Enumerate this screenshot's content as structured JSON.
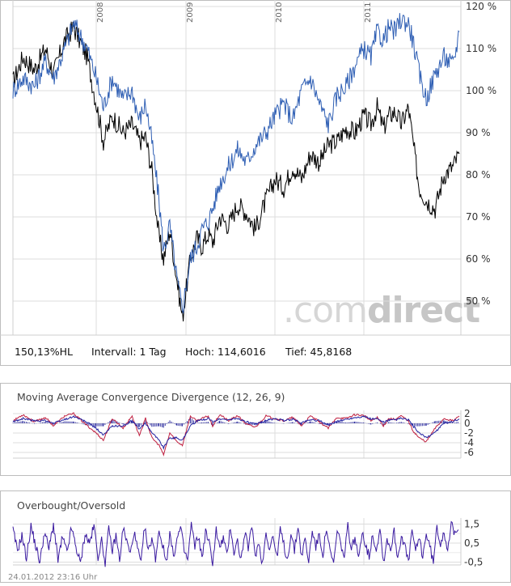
{
  "chart_data": [
    {
      "type": "line",
      "x_ticks": [
        "2008",
        "2009",
        "2010",
        "2011"
      ],
      "y_ticks": [
        "120 %",
        "110 %",
        "100 %",
        "90 %",
        "80 %",
        "70 %",
        "60 %",
        "50 %"
      ],
      "ylim": [
        42,
        122
      ],
      "grid": true,
      "series": [
        {
          "color": "#000000",
          "x": [
            2007.26,
            2007.35,
            2007.45,
            2007.55,
            2007.62,
            2007.72,
            2007.8,
            2007.92,
            2008.0,
            2008.08,
            2008.18,
            2008.3,
            2008.4,
            2008.48,
            2008.55,
            2008.62,
            2008.7,
            2008.75,
            2008.82,
            2008.9,
            2008.96,
            2009.05,
            2009.12,
            2009.18,
            2009.25,
            2009.3,
            2009.38,
            2009.48,
            2009.58,
            2009.68,
            2009.78,
            2009.9,
            2010.0,
            2010.1,
            2010.2,
            2010.3,
            2010.4,
            2010.5,
            2010.6,
            2010.7,
            2010.8,
            2010.9,
            2011.0,
            2011.08,
            2011.15,
            2011.22,
            2011.28,
            2011.35,
            2011.42,
            2011.5,
            2011.55,
            2011.62,
            2011.7,
            2011.8,
            2011.9,
            2012.0,
            2012.07
          ],
          "y": [
            102,
            108,
            105,
            110,
            104,
            112,
            115,
            108,
            97,
            88,
            94,
            90,
            92,
            88,
            89,
            81,
            65,
            60,
            67,
            55,
            46,
            60,
            65,
            63,
            66,
            64,
            70,
            68,
            73,
            71,
            67,
            74,
            79,
            77,
            82,
            79,
            85,
            83,
            87,
            88,
            91,
            90,
            94,
            92,
            96,
            91,
            94,
            95,
            92,
            96,
            88,
            77,
            74,
            72,
            80,
            82,
            85
          ]
        },
        {
          "color": "#2f5fb4",
          "x": [
            2007.26,
            2007.35,
            2007.45,
            2007.55,
            2007.62,
            2007.72,
            2007.8,
            2007.92,
            2008.0,
            2008.08,
            2008.18,
            2008.3,
            2008.4,
            2008.48,
            2008.55,
            2008.62,
            2008.7,
            2008.75,
            2008.82,
            2008.9,
            2008.96,
            2009.05,
            2009.12,
            2009.18,
            2009.25,
            2009.3,
            2009.38,
            2009.48,
            2009.58,
            2009.68,
            2009.78,
            2009.9,
            2010.0,
            2010.1,
            2010.2,
            2010.3,
            2010.4,
            2010.5,
            2010.6,
            2010.7,
            2010.8,
            2010.9,
            2011.0,
            2011.08,
            2011.15,
            2011.22,
            2011.28,
            2011.35,
            2011.42,
            2011.5,
            2011.55,
            2011.62,
            2011.7,
            2011.8,
            2011.9,
            2012.0,
            2012.07
          ],
          "y": [
            100,
            103,
            101,
            107,
            103,
            110,
            116,
            110,
            103,
            96,
            103,
            98,
            100,
            93,
            97,
            88,
            74,
            62,
            68,
            55,
            48,
            60,
            63,
            67,
            69,
            72,
            78,
            82,
            86,
            83,
            87,
            90,
            94,
            97,
            93,
            100,
            103,
            97,
            92,
            99,
            101,
            106,
            110,
            108,
            114,
            112,
            115,
            114,
            117,
            116,
            112,
            104,
            98,
            104,
            108,
            106,
            114
          ]
        }
      ]
    },
    {
      "type": "line",
      "title": "Moving Average Convergence Divergence (12, 26, 9)",
      "y_ticks": [
        "2",
        "0",
        "-2",
        "-4",
        "-6"
      ],
      "ylim": [
        -7,
        3
      ],
      "grid": true,
      "x": [
        2007.26,
        2007.35,
        2007.45,
        2007.55,
        2007.62,
        2007.72,
        2007.8,
        2007.92,
        2008.0,
        2008.08,
        2008.18,
        2008.3,
        2008.4,
        2008.48,
        2008.55,
        2008.62,
        2008.7,
        2008.75,
        2008.82,
        2008.9,
        2008.96,
        2009.05,
        2009.12,
        2009.18,
        2009.25,
        2009.3,
        2009.38,
        2009.48,
        2009.58,
        2009.68,
        2009.78,
        2009.9,
        2010.0,
        2010.1,
        2010.2,
        2010.3,
        2010.4,
        2010.5,
        2010.6,
        2010.7,
        2010.8,
        2010.9,
        2011.0,
        2011.08,
        2011.15,
        2011.22,
        2011.28,
        2011.35,
        2011.42,
        2011.5,
        2011.55,
        2011.62,
        2011.7,
        2011.8,
        2011.9,
        2012.0,
        2012.07
      ],
      "series": [
        {
          "color": "#c02040",
          "y": [
            0.5,
            1.8,
            0.3,
            1.2,
            -0.5,
            1.5,
            2.0,
            -0.5,
            -2.0,
            -3.5,
            1.0,
            -1.0,
            1.5,
            -2.5,
            1.0,
            -3.0,
            -4.5,
            -6.5,
            -2.0,
            -3.8,
            -4.5,
            1.5,
            0.5,
            1.0,
            1.5,
            -0.5,
            1.8,
            0.5,
            1.6,
            -0.2,
            -0.8,
            1.5,
            1.0,
            0.5,
            1.2,
            -0.5,
            1.5,
            0.3,
            -1.0,
            1.2,
            1.0,
            1.8,
            1.6,
            0.5,
            1.2,
            -0.5,
            1.0,
            0.8,
            1.5,
            0.5,
            -1.5,
            -3.0,
            -3.8,
            -1.0,
            1.0,
            0.5,
            1.5
          ]
        },
        {
          "color": "#2020a0",
          "y": [
            0.3,
            1.0,
            0.5,
            0.6,
            0.0,
            0.8,
            1.4,
            0.2,
            -1.0,
            -2.5,
            -0.5,
            -0.6,
            0.6,
            -1.2,
            0.0,
            -1.8,
            -3.5,
            -5.0,
            -3.0,
            -3.0,
            -3.5,
            -0.5,
            0.4,
            0.7,
            1.0,
            0.3,
            0.9,
            0.7,
            1.0,
            0.3,
            -0.2,
            0.6,
            0.9,
            0.6,
            0.8,
            0.1,
            0.8,
            0.5,
            -0.3,
            0.4,
            0.8,
            1.2,
            1.4,
            0.9,
            0.9,
            0.2,
            0.6,
            0.7,
            1.0,
            0.7,
            -0.5,
            -2.0,
            -3.0,
            -1.8,
            0.0,
            0.4,
            0.9
          ]
        }
      ]
    },
    {
      "type": "line",
      "title": "Overbought/Oversold",
      "y_ticks": [
        "1,5",
        "0,5",
        "-0,5"
      ],
      "ylim": [
        -0.8,
        1.8
      ],
      "grid": true,
      "series": [
        {
          "color": "#3a1aa0",
          "x": [
            2007.26,
            2007.3,
            2007.34,
            2007.38,
            2007.42,
            2007.46,
            2007.5,
            2007.54,
            2007.58,
            2007.62,
            2007.66,
            2007.7,
            2007.74,
            2007.78,
            2007.82,
            2007.86,
            2007.9,
            2007.94,
            2007.98,
            2008.02,
            2008.06,
            2008.1,
            2008.14,
            2008.18,
            2008.22,
            2008.26,
            2008.3,
            2008.34,
            2008.38,
            2008.42,
            2008.46,
            2008.5,
            2008.54,
            2008.58,
            2008.62,
            2008.66,
            2008.7,
            2008.74,
            2008.78,
            2008.82,
            2008.86,
            2008.9,
            2008.94,
            2008.98,
            2009.02,
            2009.06,
            2009.1,
            2009.14,
            2009.18,
            2009.22,
            2009.26,
            2009.3,
            2009.34,
            2009.38,
            2009.42,
            2009.46,
            2009.5,
            2009.54,
            2009.58,
            2009.62,
            2009.66,
            2009.7,
            2009.74,
            2009.78,
            2009.82,
            2009.86,
            2009.9,
            2009.94,
            2009.98,
            2010.02,
            2010.06,
            2010.1,
            2010.14,
            2010.18,
            2010.22,
            2010.26,
            2010.3,
            2010.34,
            2010.38,
            2010.42,
            2010.46,
            2010.5,
            2010.54,
            2010.58,
            2010.62,
            2010.66,
            2010.7,
            2010.74,
            2010.78,
            2010.82,
            2010.86,
            2010.9,
            2010.94,
            2010.98,
            2011.02,
            2011.06,
            2011.1,
            2011.14,
            2011.18,
            2011.22,
            2011.26,
            2011.3,
            2011.34,
            2011.38,
            2011.42,
            2011.46,
            2011.5,
            2011.54,
            2011.58,
            2011.62,
            2011.66,
            2011.7,
            2011.74,
            2011.78,
            2011.82,
            2011.86,
            2011.9,
            2011.94,
            2011.98,
            2012.02,
            2012.06
          ],
          "y": [
            1.2,
            0.1,
            0.9,
            -0.3,
            1.4,
            0.4,
            -0.5,
            1.1,
            0.2,
            1.5,
            -0.4,
            0.8,
            0.0,
            1.3,
            0.3,
            -0.6,
            1.0,
            0.5,
            1.4,
            -0.2,
            0.6,
            -0.5,
            1.2,
            0.1,
            0.9,
            -0.4,
            1.3,
            0.6,
            -0.1,
            1.1,
            0.2,
            -0.6,
            1.4,
            0.0,
            0.8,
            -0.3,
            1.2,
            0.4,
            -0.5,
            1.0,
            -0.2,
            0.7,
            1.3,
            0.1,
            -0.4,
            1.5,
            0.3,
            0.9,
            -0.3,
            1.1,
            0.5,
            -0.5,
            1.2,
            0.2,
            0.8,
            -0.2,
            1.4,
            0.0,
            0.6,
            -0.4,
            1.0,
            0.3,
            1.3,
            -0.1,
            0.5,
            -0.6,
            1.1,
            0.2,
            0.9,
            -0.3,
            1.2,
            0.4,
            -0.4,
            1.0,
            0.1,
            1.4,
            -0.2,
            0.7,
            -0.5,
            1.2,
            0.3,
            0.9,
            -0.1,
            1.3,
            0.0,
            -0.6,
            1.1,
            0.5,
            -0.3,
            1.4,
            0.2,
            0.8,
            -0.4,
            1.2,
            0.4,
            -0.2,
            1.0,
            0.1,
            1.3,
            -0.5,
            0.7,
            0.2,
            1.1,
            -0.3,
            0.9,
            0.4,
            -0.6,
            1.2,
            0.0,
            0.8,
            -0.2,
            1.0,
            0.3,
            -0.5,
            1.3,
            0.5,
            1.1,
            0.2,
            1.5,
            0.9,
            1.2
          ]
        }
      ]
    }
  ],
  "info": {
    "perf": "150,13%HL",
    "interval": "Intervall: 1 Tag",
    "high": "Hoch: 114,6016",
    "low": "Tief: 45,8168"
  },
  "watermark": {
    "part1": ".com",
    "part2": "direct"
  },
  "timestamp": "24.01.2012 23:16 Uhr"
}
